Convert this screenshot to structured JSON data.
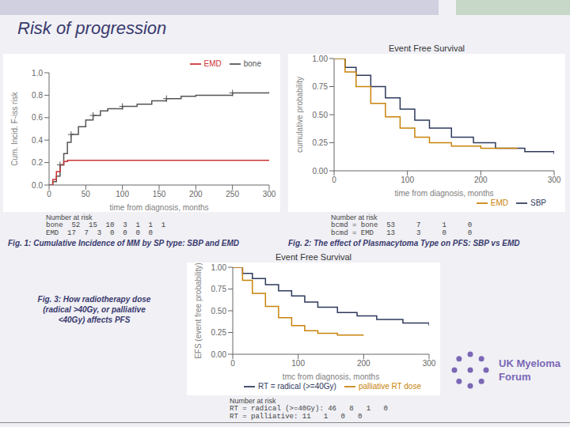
{
  "title": "Risk of progression",
  "annotations": [
    "UK Myeloma",
    "Forum"
  ],
  "chart_data": [
    {
      "type": "line",
      "line_style": "step",
      "xlabel": "time from diagnosis, months",
      "ylabel": "Cum. Incid. F-iss risk",
      "xlim": [
        0,
        300
      ],
      "ylim": [
        0,
        1
      ],
      "xticks": [
        0,
        50,
        100,
        150,
        200,
        250,
        300
      ],
      "yticks": [
        {
          "value": 0,
          "label": "0.0"
        },
        0.2,
        0.4,
        0.6,
        0.8,
        {
          "value": 1,
          "label": "1.0"
        }
      ],
      "grid": false,
      "legend": "upper right",
      "series": [
        {
          "name": "bone",
          "color": "#555555",
          "x": [
            0,
            5,
            10,
            15,
            20,
            25,
            30,
            40,
            50,
            60,
            70,
            80,
            100,
            120,
            140,
            160,
            180,
            200,
            250,
            300
          ],
          "values": [
            0.0,
            0.03,
            0.08,
            0.18,
            0.28,
            0.38,
            0.45,
            0.52,
            0.58,
            0.62,
            0.66,
            0.68,
            0.7,
            0.72,
            0.75,
            0.77,
            0.79,
            0.8,
            0.82,
            0.83
          ]
        },
        {
          "name": "EMD",
          "color": "#cc3333",
          "x": [
            0,
            5,
            10,
            15,
            20,
            25,
            30,
            50,
            100,
            200,
            300
          ],
          "values": [
            0.0,
            0.05,
            0.12,
            0.18,
            0.21,
            0.22,
            0.22,
            0.22,
            0.22,
            0.22,
            0.22
          ]
        },
        {
          "type": "scatter",
          "marker": "plus",
          "color": "#555555",
          "x": [
            15,
            30,
            60,
            100,
            160,
            250
          ],
          "values": [
            0.18,
            0.45,
            0.62,
            0.7,
            0.77,
            0.82
          ]
        }
      ],
      "annotations": [
        "Number at risk",
        "bone  52  15  10  3  1  1  1",
        "EMD  17  7  3  0  0  0  0",
        "Fig. 1: Cumulative Incidence of MM by SP type: SBP and EMD"
      ]
    },
    {
      "type": "line",
      "line_style": "step",
      "title": "Event Free Survival",
      "xlabel": "time from diagnosis, months",
      "ylabel": "cumulative probability",
      "xlim": [
        0,
        300
      ],
      "ylim": [
        0,
        1
      ],
      "xticks": [
        0,
        100,
        200,
        300
      ],
      "yticks": [
        {
          "value": 0,
          "label": "0.00"
        },
        0.25,
        {
          "value": 0.5,
          "label": "0.50"
        },
        0.75,
        {
          "value": 1,
          "label": "1.00"
        }
      ],
      "grid": false,
      "legend": "lower right",
      "series": [
        {
          "name": "SBP",
          "color": "#2e3a5c",
          "x": [
            0,
            15,
            30,
            50,
            70,
            90,
            110,
            130,
            160,
            190,
            220,
            260,
            300
          ],
          "values": [
            1.0,
            0.92,
            0.85,
            0.75,
            0.65,
            0.55,
            0.45,
            0.38,
            0.3,
            0.25,
            0.2,
            0.17,
            0.15
          ]
        },
        {
          "name": "EMD",
          "color": "#c8830a",
          "x": [
            0,
            15,
            30,
            50,
            70,
            90,
            110,
            130,
            160,
            200,
            250
          ],
          "values": [
            1.0,
            0.88,
            0.75,
            0.6,
            0.48,
            0.38,
            0.3,
            0.25,
            0.22,
            0.2,
            0.2
          ]
        }
      ],
      "annotations": [
        "Number at risk",
        "bcmd = bone  53     7     1     0",
        "bcmd = EMD   13     3     0     0",
        "Fig. 2: The effect of Plasmacytoma Type on PFS: SBP vs EMD"
      ]
    },
    {
      "type": "line",
      "line_style": "step",
      "title": "Event Free Survival",
      "xlabel": "tmc from diagnosis, months",
      "ylabel": "EFS (event free probability)",
      "xlim": [
        0,
        300
      ],
      "ylim": [
        0,
        1
      ],
      "xticks": [
        0,
        100,
        200,
        300
      ],
      "yticks": [
        {
          "value": 0,
          "label": "0.00"
        },
        0.25,
        {
          "value": 0.5,
          "label": "0.50"
        },
        0.75,
        {
          "value": 1,
          "label": "1.00"
        }
      ],
      "grid": false,
      "legend": "lower right",
      "series": [
        {
          "name": "RT = radical (>=40Gy)",
          "color": "#2e3a5c",
          "x": [
            0,
            15,
            30,
            50,
            70,
            90,
            110,
            130,
            160,
            190,
            220,
            260,
            300
          ],
          "values": [
            1.0,
            0.93,
            0.87,
            0.8,
            0.73,
            0.67,
            0.6,
            0.54,
            0.48,
            0.44,
            0.4,
            0.36,
            0.33
          ]
        },
        {
          "name": "palliative RT dose",
          "color": "#c8830a",
          "x": [
            0,
            15,
            30,
            50,
            70,
            90,
            110,
            130,
            160,
            200
          ],
          "values": [
            1.0,
            0.85,
            0.7,
            0.55,
            0.42,
            0.33,
            0.27,
            0.24,
            0.22,
            0.22
          ]
        }
      ],
      "annotations": [
        "Number at risk",
        "RT = radical (>=40Gy): 46   8   1   0",
        "RT = palliative: 11   1   0   0",
        "Fig. 3: How radiotherapy dose",
        "(radical >40Gy, or palliative",
        "<40Gy) affects PFS"
      ]
    }
  ]
}
